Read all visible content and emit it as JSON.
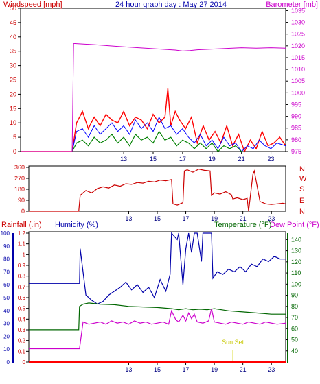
{
  "colors": {
    "wind": "#ff0000",
    "wind_gust": "#0000ff",
    "wind_avg": "#008000",
    "barometer": "#cc00cc",
    "direction": "#cc0000",
    "humidity": "#0000aa",
    "temperature": "#006600",
    "dewpoint": "#cc00cc",
    "rainfall": "#ff0000",
    "sunset": "#d4d400",
    "frame": "#000000"
  },
  "chart_data": [
    {
      "type": "line",
      "title": "24 hour graph day : May 27 2014",
      "left_axis_label": "Windspeed [mph]",
      "right_axis_label": "Barometer [mb]",
      "x_ticks": [
        "13",
        "15",
        "17",
        "19",
        "21",
        "23"
      ],
      "y_left_ticks": [
        "0",
        "5",
        "10",
        "15",
        "20",
        "25",
        "30",
        "35",
        "40",
        "45",
        "50"
      ],
      "y_left_range": [
        0,
        50
      ],
      "y_right_ticks": [
        "975",
        "980",
        "985",
        "990",
        "995",
        "1000",
        "1005",
        "1010",
        "1015",
        "1020",
        "1025",
        "1030",
        "1035"
      ],
      "y_right_range": [
        975,
        1036
      ],
      "series": [
        {
          "key": "wind_gust",
          "x": [
            6,
            9.5,
            9.8,
            10.2,
            10.6,
            11,
            11.4,
            11.8,
            12.2,
            12.6,
            13,
            13.4,
            13.8,
            14.2,
            14.6,
            15,
            15.4,
            15.8,
            16,
            16.2,
            16.5,
            16.8,
            17.2,
            17.6,
            18,
            18.4,
            18.8,
            19.2,
            19.6,
            20,
            20.4,
            20.8,
            21.2,
            21.6,
            22,
            22.4,
            22.8,
            23.2,
            23.6,
            24
          ],
          "values": [
            0,
            0,
            10,
            14,
            8,
            12,
            9,
            13,
            11,
            10,
            14,
            9,
            12,
            11,
            8,
            13,
            10,
            12,
            22,
            9,
            14,
            11,
            8,
            12,
            3,
            9,
            4,
            7,
            3,
            9,
            2,
            6,
            0,
            4,
            1,
            7,
            2,
            3,
            5,
            2
          ]
        },
        {
          "key": "wind_avg",
          "x": [
            6,
            9.5,
            9.8,
            10.2,
            10.6,
            11,
            11.4,
            11.8,
            12.2,
            12.6,
            13,
            13.4,
            13.8,
            14.2,
            14.6,
            15,
            15.4,
            15.8,
            16.2,
            16.6,
            17,
            17.4,
            17.8,
            18.2,
            18.6,
            19,
            19.4,
            19.8,
            20.2,
            20.6,
            21,
            21.4,
            21.8,
            22.2,
            22.6,
            23,
            23.4,
            24
          ],
          "values": [
            0,
            0,
            7,
            8,
            5,
            9,
            6,
            8,
            10,
            7,
            9,
            6,
            11,
            8,
            10,
            7,
            12,
            8,
            9,
            6,
            8,
            5,
            3,
            6,
            2,
            4,
            1,
            5,
            2,
            3,
            0,
            2,
            1,
            4,
            2,
            1,
            3,
            2
          ]
        },
        {
          "key": "wind_avg_alt",
          "x": [
            9.5,
            9.8,
            10.2,
            10.6,
            11,
            11.4,
            11.8,
            12.2,
            12.6,
            13,
            13.4,
            13.8,
            14.2,
            14.6,
            15,
            15.4,
            15.8,
            16.2,
            16.6,
            17,
            17.4,
            17.8,
            18.2,
            18.6,
            19,
            19.4,
            19.8,
            20.2,
            20.6,
            21
          ],
          "values": [
            0,
            3,
            4,
            2,
            5,
            3,
            4,
            6,
            3,
            5,
            2,
            6,
            4,
            5,
            3,
            7,
            4,
            5,
            2,
            4,
            3,
            1,
            3,
            1,
            3,
            0,
            2,
            1,
            2,
            0
          ]
        },
        {
          "key": "barometer",
          "x": [
            6,
            9.5,
            9.6,
            11,
            12.5,
            14,
            15.5,
            16.5,
            17,
            17.5,
            18,
            19,
            20,
            21,
            22,
            23,
            24
          ],
          "values": [
            0,
            0,
            1021,
            1020.5,
            1019.8,
            1019.2,
            1018.6,
            1018.2,
            1017.8,
            1018.0,
            1018.3,
            1018.6,
            1018.9,
            1019.2,
            1019.0,
            1019.2,
            1019.0
          ]
        }
      ]
    },
    {
      "type": "line",
      "left_axis_ticks": [
        "0",
        "90",
        "180",
        "270",
        "360"
      ],
      "y_range": [
        0,
        360
      ],
      "right_axis_labels": [
        "N",
        "W",
        "S",
        "E",
        "N"
      ],
      "x_ticks": [
        "13",
        "15",
        "17",
        "19",
        "21",
        "23"
      ],
      "series": [
        {
          "key": "direction",
          "x": [
            6,
            9.5,
            9.6,
            10,
            10.4,
            10.8,
            11.2,
            11.6,
            12,
            12.4,
            12.8,
            13.2,
            13.6,
            14,
            14.4,
            14.8,
            15.2,
            15.6,
            16,
            16.1,
            16.4,
            16.8,
            16.9,
            17.1,
            17.5,
            17.9,
            18.3,
            18.7,
            18.8,
            19,
            19.4,
            19.8,
            20.2,
            20.3,
            20.6,
            21,
            21.3,
            21.4,
            21.7,
            21.8,
            22.2,
            22.6,
            23,
            23.4,
            23.8,
            24
          ],
          "values": [
            0,
            0,
            130,
            170,
            150,
            185,
            200,
            190,
            215,
            205,
            225,
            220,
            235,
            230,
            245,
            240,
            255,
            250,
            260,
            60,
            50,
            70,
            330,
            340,
            320,
            345,
            335,
            330,
            130,
            150,
            140,
            160,
            135,
            100,
            110,
            95,
            105,
            0,
            300,
            330,
            80,
            60,
            55,
            60,
            65,
            60
          ]
        }
      ]
    },
    {
      "type": "line",
      "labels": {
        "rainfall": "Rainfall (.in)",
        "humidity": "Humidity (%)",
        "temperature": "Temperature (°F)",
        "dewpoint": "Dew Point (°F)"
      },
      "rain_ticks": [
        "0",
        "0.1",
        "0.2",
        "0.3",
        "0.4",
        "0.5",
        "0.6",
        "0.7",
        "0.8",
        "0.9",
        "1",
        "1.1",
        "1.2"
      ],
      "rain_range": [
        0,
        1.2
      ],
      "humidity_ticks": [
        "0",
        "10",
        "20",
        "30",
        "40",
        "50",
        "60",
        "70",
        "80",
        "90",
        "100"
      ],
      "humidity_range": [
        0,
        100
      ],
      "temp_ticks": [
        "40",
        "50",
        "60",
        "70",
        "80",
        "90",
        "100",
        "110",
        "120",
        "130",
        "140"
      ],
      "temp_range": [
        30,
        147
      ],
      "x_ticks": [
        "13",
        "15",
        "17",
        "19",
        "21",
        "23"
      ],
      "annotation": "Sun Set",
      "annotation_x": 20.3,
      "series": [
        {
          "key": "humidity",
          "x": [
            6,
            9.5,
            9.55,
            9.6,
            10,
            10.4,
            10.8,
            11.2,
            11.6,
            12,
            12.4,
            12.8,
            13.2,
            13.6,
            14,
            14.4,
            14.8,
            15.2,
            15.6,
            15.9,
            16,
            16.4,
            16.5,
            16.8,
            17,
            17.2,
            17.4,
            17.6,
            17.8,
            18.1,
            18.2,
            18.3,
            18.5,
            18.8,
            18.9,
            19.2,
            19.6,
            20,
            20.4,
            20.8,
            21.2,
            21.6,
            22,
            22.4,
            22.8,
            23.2,
            23.6,
            24
          ],
          "values": [
            61,
            61,
            61,
            88,
            52,
            48,
            45,
            47,
            52,
            55,
            58,
            62,
            56,
            60,
            54,
            58,
            50,
            64,
            55,
            68,
            100,
            95,
            100,
            60,
            88,
            100,
            85,
            100,
            100,
            78,
            100,
            100,
            100,
            100,
            65,
            70,
            68,
            72,
            70,
            74,
            70,
            76,
            74,
            80,
            78,
            82,
            80,
            80
          ]
        },
        {
          "key": "temperature",
          "x": [
            6,
            9.5,
            9.55,
            9.8,
            10.2,
            11,
            12,
            13,
            14,
            15,
            16,
            16.5,
            17,
            17.5,
            18,
            18.5,
            19,
            19.5,
            20,
            21,
            22,
            23,
            24
          ],
          "values": [
            59,
            59,
            80,
            82,
            83,
            82,
            81.5,
            80,
            79.5,
            79,
            78,
            77,
            78,
            77,
            77.5,
            77,
            78,
            77,
            76,
            75,
            74,
            73,
            73
          ]
        },
        {
          "key": "dewpoint",
          "x": [
            6,
            9.5,
            9.55,
            9.8,
            10.2,
            10.6,
            11,
            11.4,
            11.8,
            12.2,
            12.6,
            13,
            13.4,
            13.8,
            14.2,
            14.6,
            15,
            15.4,
            15.8,
            16,
            16.3,
            16.5,
            16.8,
            17,
            17.2,
            17.4,
            17.6,
            17.8,
            18.2,
            18.6,
            18.8,
            19,
            19.4,
            19.8,
            20.2,
            20.6,
            21,
            21.4,
            21.8,
            22.2,
            22.6,
            23,
            23.4,
            24
          ],
          "values": [
            42,
            42,
            42,
            66,
            64,
            65,
            66,
            64,
            67,
            65,
            66,
            64,
            67,
            65,
            66,
            64,
            65,
            66,
            64,
            76,
            68,
            66,
            72,
            67,
            74,
            69,
            73,
            66,
            65,
            67,
            78,
            66,
            65,
            64,
            66,
            65,
            64,
            66,
            65,
            64,
            66,
            65,
            64,
            65
          ]
        },
        {
          "key": "rainfall",
          "x": [
            6,
            24
          ],
          "values": [
            0,
            0
          ]
        }
      ]
    }
  ]
}
